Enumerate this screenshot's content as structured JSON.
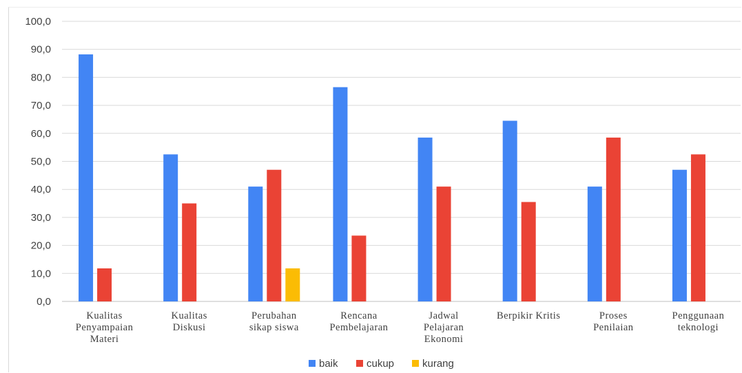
{
  "chart_data": {
    "type": "bar",
    "categories": [
      [
        "Kualitas",
        "Penyampaian",
        "Materi"
      ],
      [
        "Kualitas",
        "Diskusi"
      ],
      [
        "Perubahan",
        "sikap siswa"
      ],
      [
        "Rencana",
        "Pembelajaran"
      ],
      [
        "Jadwal",
        "Pelajaran",
        "Ekonomi"
      ],
      [
        "Berpikir Kritis"
      ],
      [
        "Proses",
        "Penilaian"
      ],
      [
        "Penggunaan",
        "teknologi"
      ]
    ],
    "series": [
      {
        "name": "baik",
        "color": "#4285F4",
        "values": [
          88.2,
          52.5,
          41.0,
          76.5,
          58.5,
          64.5,
          41.0,
          47.0
        ]
      },
      {
        "name": "cukup",
        "color": "#EA4335",
        "values": [
          11.8,
          35.0,
          47.0,
          23.5,
          41.0,
          35.5,
          58.5,
          52.5
        ]
      },
      {
        "name": "kurang",
        "color": "#FBBC04",
        "values": [
          0,
          0,
          11.8,
          0,
          0,
          0,
          0,
          0
        ]
      }
    ],
    "ylim": [
      0,
      100
    ],
    "yticks": [
      "0,0",
      "10,0",
      "20,0",
      "30,0",
      "40,0",
      "50,0",
      "60,0",
      "70,0",
      "80,0",
      "90,0",
      "100,0"
    ],
    "grid": true,
    "legend_position": "bottom"
  }
}
